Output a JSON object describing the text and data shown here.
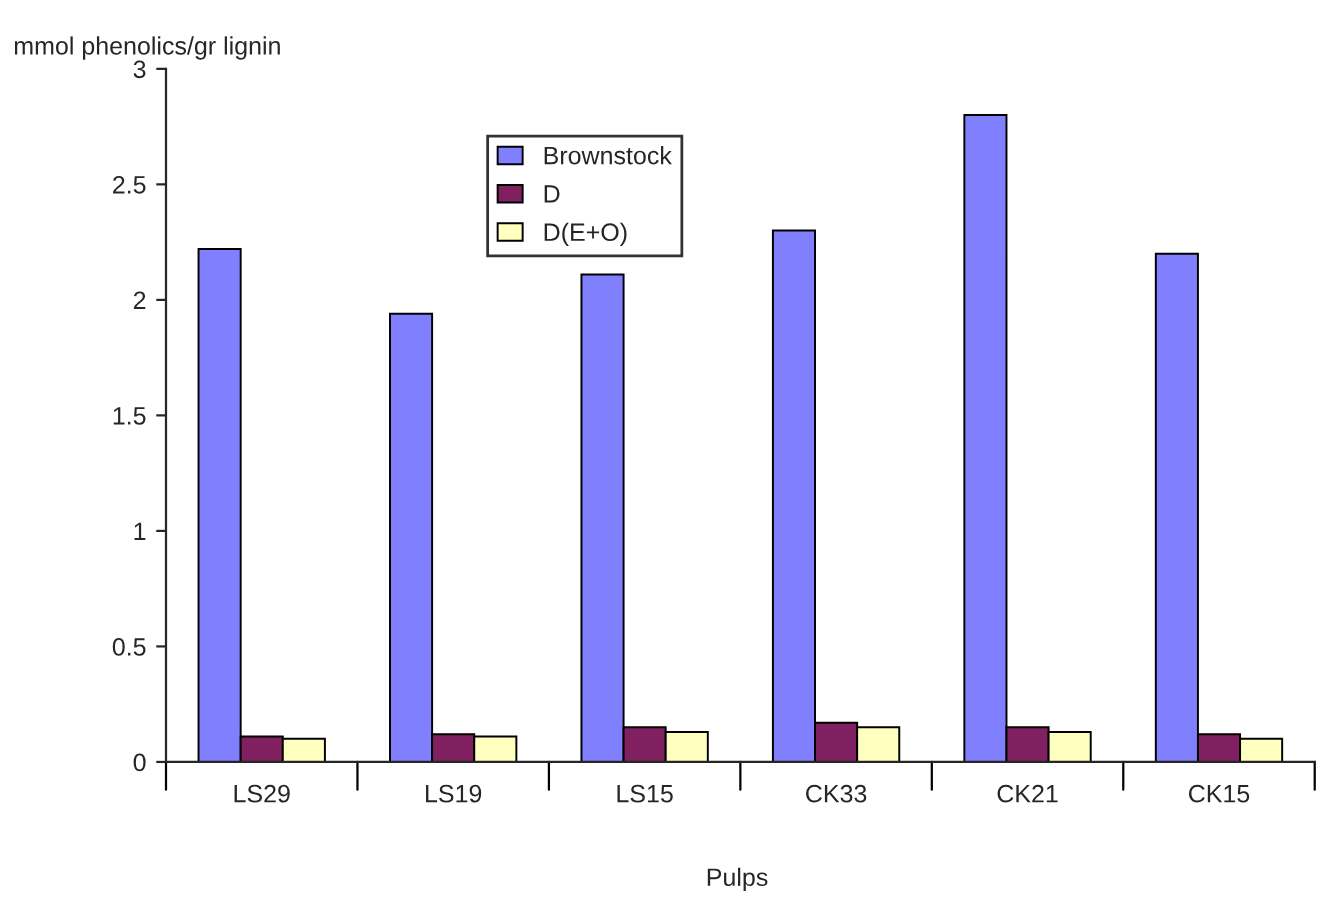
{
  "chart_data": {
    "type": "bar",
    "ylabel": "mmol phenolics/gr lignin",
    "xlabel": "Pulps",
    "categories": [
      "LS29",
      "LS19",
      "LS15",
      "CK33",
      "CK21",
      "CK15"
    ],
    "series": [
      {
        "name": "Brownstock",
        "color": "#8080ff",
        "values": [
          2.22,
          1.94,
          2.11,
          2.3,
          2.8,
          2.2
        ]
      },
      {
        "name": "D",
        "color": "#802060",
        "values": [
          0.11,
          0.12,
          0.15,
          0.17,
          0.15,
          0.12
        ]
      },
      {
        "name": "D(E+O)",
        "color": "#ffffc0",
        "values": [
          0.1,
          0.11,
          0.13,
          0.15,
          0.13,
          0.1
        ]
      }
    ],
    "ylim": [
      0,
      3
    ],
    "yticks": [
      0,
      0.5,
      1,
      1.5,
      2,
      2.5,
      3
    ],
    "grid": false,
    "legend": "top"
  }
}
